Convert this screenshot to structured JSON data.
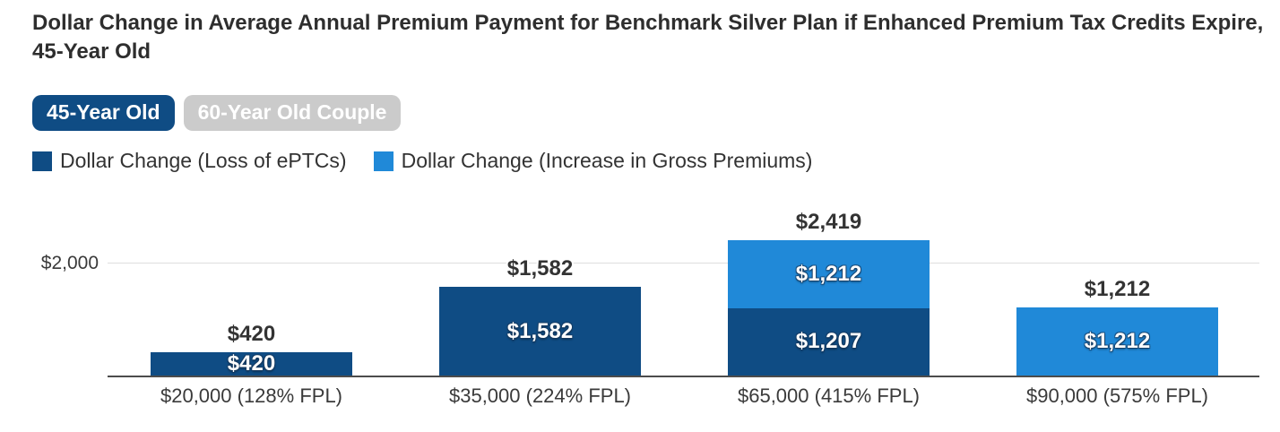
{
  "title": "Dollar Change in Average Annual Premium Payment for Benchmark Silver Plan if Enhanced Premium Tax Credits Expire, 45-Year Old",
  "toggles": [
    {
      "label": "45-Year Old",
      "active": true
    },
    {
      "label": "60-Year Old Couple",
      "active": false
    }
  ],
  "legend": [
    {
      "label": "Dollar Change (Loss of ePTCs)",
      "color": "#0f4c84"
    },
    {
      "label": "Dollar Change (Increase in Gross Premiums)",
      "color": "#2089d8"
    }
  ],
  "colors": {
    "dark_blue": "#0f4c84",
    "light_blue": "#2089d8",
    "inactive_gray": "#cbcbcb",
    "text": "#333333",
    "axis": "#4c4c4c",
    "gridline": "#dedede"
  },
  "chart_data": {
    "type": "bar",
    "stacked": true,
    "title": "Dollar Change in Average Annual Premium Payment for Benchmark Silver Plan if Enhanced Premium Tax Credits Expire, 45-Year Old",
    "categories": [
      "$20,000 (128% FPL)",
      "$35,000 (224% FPL)",
      "$65,000 (415% FPL)",
      "$90,000 (575% FPL)"
    ],
    "series": [
      {
        "name": "Dollar Change (Loss of ePTCs)",
        "color": "#0f4c84",
        "values": [
          420,
          1582,
          1207,
          0
        ],
        "labels": [
          "$420",
          "$1,582",
          "$1,207",
          ""
        ]
      },
      {
        "name": "Dollar Change (Increase in Gross Premiums)",
        "color": "#2089d8",
        "values": [
          0,
          0,
          1212,
          1212
        ],
        "labels": [
          "",
          "",
          "$1,212",
          "$1,212"
        ]
      }
    ],
    "totals": [
      420,
      1582,
      2419,
      1212
    ],
    "total_labels": [
      "$420",
      "$1,582",
      "$2,419",
      "$1,212"
    ],
    "y_axis": {
      "tick_label": "$2,000",
      "tick_value": 2000
    },
    "ylim": [
      0,
      3050
    ],
    "gridlines": [
      2000
    ],
    "grid": true,
    "legend_position": "top-left"
  }
}
